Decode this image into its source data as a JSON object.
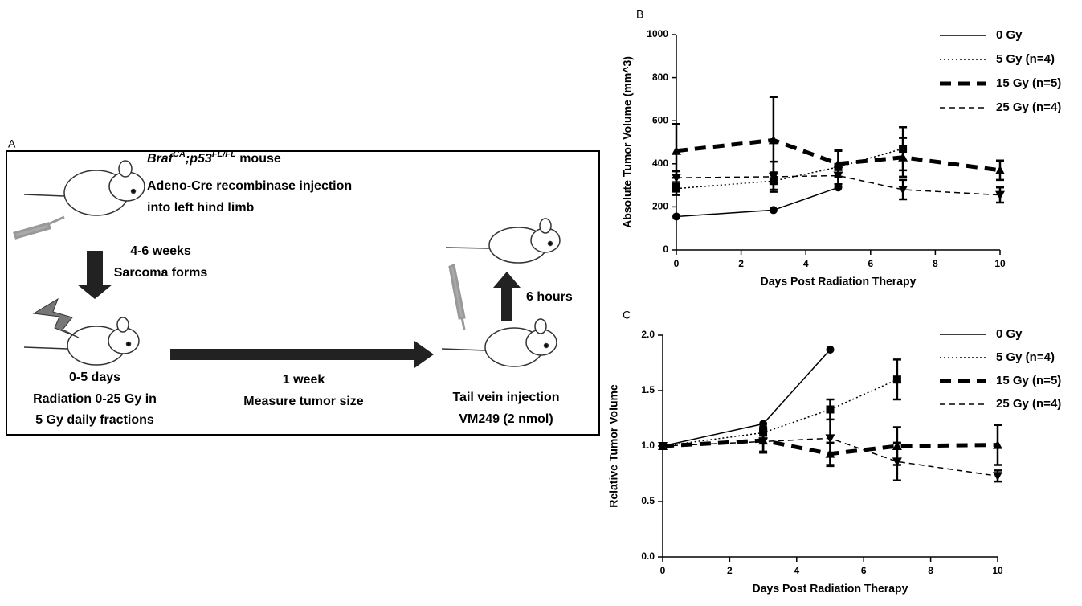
{
  "diagram": {
    "panel_label": "A",
    "mouse_line": {
      "gene1": "Braf",
      "sup1": "CA",
      "sep": ";",
      "gene2": "p53",
      "sup2": "FL/FL",
      "rest": " mouse"
    },
    "step1": [
      "Adeno-Cre recombinase injection",
      "into left hind limb"
    ],
    "arrow1": [
      "4-6 weeks",
      "Sarcoma forms"
    ],
    "step2": [
      "0-5 days",
      "Radiation 0-25 Gy in",
      "5 Gy daily fractions"
    ],
    "arrow2": [
      "1 week",
      "Measure tumor size"
    ],
    "step3": [
      "Tail vein injection",
      "VM249 (2 nmol)"
    ],
    "arrow3": "6 hours"
  },
  "chart_data": [
    {
      "type": "line",
      "panel_label": "B",
      "y_label": "Absolute Tumor Volume (mm^3)",
      "x_label": "Days Post Radiation  Therapy",
      "x": [
        0,
        3,
        5,
        7,
        10
      ],
      "xlim": [
        0,
        10
      ],
      "xticks": [
        0,
        2,
        4,
        6,
        8,
        10
      ],
      "ylim": [
        0,
        1000
      ],
      "yticks": [
        0,
        200,
        400,
        600,
        800,
        1000
      ],
      "series": [
        {
          "name": "0 Gy",
          "color": "#000000",
          "line_style": "solid",
          "line_width": 1.5,
          "marker": "circle",
          "values": [
            155,
            185,
            290,
            null,
            null
          ],
          "errors": [
            null,
            null,
            null,
            null,
            null
          ]
        },
        {
          "name": "5 Gy (n=4)",
          "color": "#000000",
          "line_style": "dotted",
          "line_width": 1.5,
          "marker": "square",
          "values": [
            285,
            320,
            385,
            470,
            null
          ],
          "errors": [
            30,
            40,
            80,
            100,
            null
          ]
        },
        {
          "name": "15 Gy (n=5)",
          "color": "#000000",
          "line_style": "dashed-thick",
          "line_width": 5,
          "marker": "triangle",
          "values": [
            460,
            510,
            400,
            430,
            370
          ],
          "errors": [
            125,
            200,
            60,
            90,
            45
          ]
        },
        {
          "name": "25 Gy (n=4)",
          "color": "#000000",
          "line_style": "dashed",
          "line_width": 1.5,
          "marker": "triangle-down",
          "values": [
            335,
            340,
            345,
            280,
            255
          ],
          "errors": [
            30,
            70,
            40,
            45,
            35
          ]
        }
      ]
    },
    {
      "type": "line",
      "panel_label": "C",
      "y_label": "Relative Tumor Volume",
      "x_label": "Days Post Radiation  Therapy",
      "x": [
        0,
        3,
        5,
        7,
        10
      ],
      "xlim": [
        0,
        10
      ],
      "xticks": [
        0,
        2,
        4,
        6,
        8,
        10
      ],
      "ylim": [
        0,
        2
      ],
      "yticks": [
        {
          "value": 0,
          "label": "0.0"
        },
        0.5,
        {
          "value": 1,
          "label": "1.0"
        },
        1.5,
        {
          "value": 2,
          "label": "2.0"
        }
      ],
      "series": [
        {
          "name": "0 Gy",
          "color": "#000000",
          "line_style": "solid",
          "line_width": 1.5,
          "marker": "circle",
          "values": [
            1,
            1.2,
            1.87,
            null,
            null
          ],
          "errors": [
            null,
            null,
            null,
            null,
            null
          ]
        },
        {
          "name": "5 Gy (n=4)",
          "color": "#000000",
          "line_style": "dotted",
          "line_width": 1.5,
          "marker": "square",
          "values": [
            1,
            1.12,
            1.33,
            1.6,
            null
          ],
          "errors": [
            null,
            0.05,
            0.09,
            0.18,
            null
          ]
        },
        {
          "name": "15 Gy (n=5)",
          "color": "#000000",
          "line_style": "dashed-thick",
          "line_width": 5,
          "marker": "triangle",
          "values": [
            1,
            1.05,
            0.93,
            1.0,
            1.01
          ],
          "errors": [
            null,
            0.1,
            0.1,
            0.17,
            0.18
          ]
        },
        {
          "name": "25 Gy (n=4)",
          "color": "#000000",
          "line_style": "dashed",
          "line_width": 1.5,
          "marker": "triangle-down",
          "values": [
            1,
            1.04,
            1.07,
            0.86,
            0.73
          ],
          "errors": [
            null,
            0.1,
            0.25,
            0.17,
            0.05
          ]
        }
      ]
    }
  ]
}
